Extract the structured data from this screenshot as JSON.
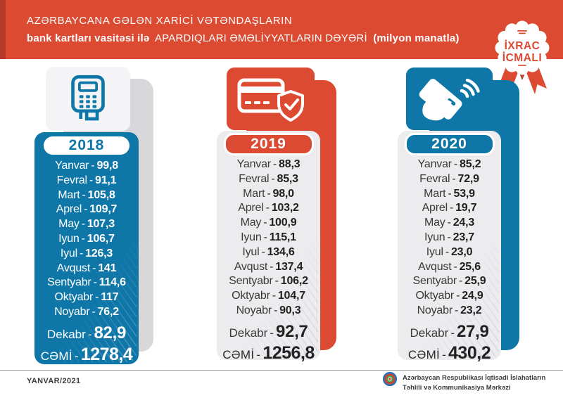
{
  "header": {
    "line1": "AZƏRBAYCANA GƏLƏN XARİCİ VƏTƏNDAŞLARIN",
    "line2_bold_start": "bank kartları vasitəsi ilə",
    "line2_regular": "APARDIQLARI ƏMƏLİYYATLARIN DƏYƏRİ",
    "line2_bold_end": "(milyon manatla)"
  },
  "badge": {
    "line1": "İXRAC",
    "line2": "İCMALI"
  },
  "row_separator": "-",
  "columns": [
    {
      "year": "2018",
      "icon": "pos-terminal-icon",
      "months": [
        {
          "label": "Yanvar",
          "value": "99,8"
        },
        {
          "label": "Fevral",
          "value": "91,1"
        },
        {
          "label": "Mart",
          "value": "105,8"
        },
        {
          "label": "Aprel",
          "value": "109,7"
        },
        {
          "label": "May",
          "value": "107,3"
        },
        {
          "label": "Iyun",
          "value": "106,7"
        },
        {
          "label": "Iyul",
          "value": "126,3"
        },
        {
          "label": "Avqust",
          "value": "141"
        },
        {
          "label": "Sentyabr",
          "value": "114,6"
        },
        {
          "label": "Oktyabr",
          "value": "117"
        },
        {
          "label": "Noyabr",
          "value": "76,2"
        }
      ],
      "december": {
        "label": "Dekabr",
        "value": "82,9"
      },
      "total": {
        "label": "CƏMİ",
        "value": "1278,4"
      }
    },
    {
      "year": "2019",
      "icon": "credit-card-shield-icon",
      "months": [
        {
          "label": "Yanvar",
          "value": "88,3"
        },
        {
          "label": "Fevral",
          "value": "85,3"
        },
        {
          "label": "Mart",
          "value": "98,0"
        },
        {
          "label": "Aprel",
          "value": "103,2"
        },
        {
          "label": "May",
          "value": "100,9"
        },
        {
          "label": "Iyun",
          "value": "115,1"
        },
        {
          "label": "Iyul",
          "value": "134,6"
        },
        {
          "label": "Avqust",
          "value": "137,4"
        },
        {
          "label": "Sentyabr",
          "value": "106,2"
        },
        {
          "label": "Oktyabr",
          "value": "104,7"
        },
        {
          "label": "Noyabr",
          "value": "90,3"
        }
      ],
      "december": {
        "label": "Dekabr",
        "value": "92,7"
      },
      "total": {
        "label": "CƏMİ",
        "value": "1256,8"
      }
    },
    {
      "year": "2020",
      "icon": "contactless-payment-icon",
      "months": [
        {
          "label": "Yanvar",
          "value": "85,2"
        },
        {
          "label": "Fevral",
          "value": "72,9"
        },
        {
          "label": "Mart",
          "value": "53,9"
        },
        {
          "label": "Aprel",
          "value": "19,7"
        },
        {
          "label": "May",
          "value": "24,3"
        },
        {
          "label": "Iyun",
          "value": "23,7"
        },
        {
          "label": "Iyul",
          "value": "23,0"
        },
        {
          "label": "Avqust",
          "value": "25,6"
        },
        {
          "label": "Sentyabr",
          "value": "25,9"
        },
        {
          "label": "Oktyabr",
          "value": "24,9"
        },
        {
          "label": "Noyabr",
          "value": "23,2"
        }
      ],
      "december": {
        "label": "Dekabr",
        "value": "27,9"
      },
      "total": {
        "label": "CƏMİ",
        "value": "430,2"
      }
    }
  ],
  "footer": {
    "date": "YANVAR/2021",
    "org_line1": "Azərbaycan Respublikası İqtisadi İslahatların",
    "org_line2": "Təhlili və Kommunikasiya Mərkəzi"
  },
  "colors": {
    "red": "#DC4A32",
    "red_dark": "#B43B29",
    "blue": "#0F76A8",
    "panel_gray": "#ECECEE",
    "shadow_gray": "#D8D8DB",
    "text_dark": "#2B2B2B"
  },
  "chart_data": {
    "type": "table",
    "title": "Azərbaycana gələn xarici vətəndaşların bank kartları vasitəsi ilə apardıqları əməliyyatların dəyəri (milyon manatla)",
    "categories": [
      "Yanvar",
      "Fevral",
      "Mart",
      "Aprel",
      "May",
      "Iyun",
      "Iyul",
      "Avqust",
      "Sentyabr",
      "Oktyabr",
      "Noyabr",
      "Dekabr"
    ],
    "series": [
      {
        "name": "2018",
        "values": [
          99.8,
          91.1,
          105.8,
          109.7,
          107.3,
          106.7,
          126.3,
          141,
          114.6,
          117,
          76.2,
          82.9
        ],
        "total": 1278.4
      },
      {
        "name": "2019",
        "values": [
          88.3,
          85.3,
          98.0,
          103.2,
          100.9,
          115.1,
          134.6,
          137.4,
          106.2,
          104.7,
          90.3,
          92.7
        ],
        "total": 1256.8
      },
      {
        "name": "2020",
        "values": [
          85.2,
          72.9,
          53.9,
          19.7,
          24.3,
          23.7,
          23.0,
          25.6,
          25.9,
          24.9,
          23.2,
          27.9
        ],
        "total": 430.2
      }
    ]
  }
}
